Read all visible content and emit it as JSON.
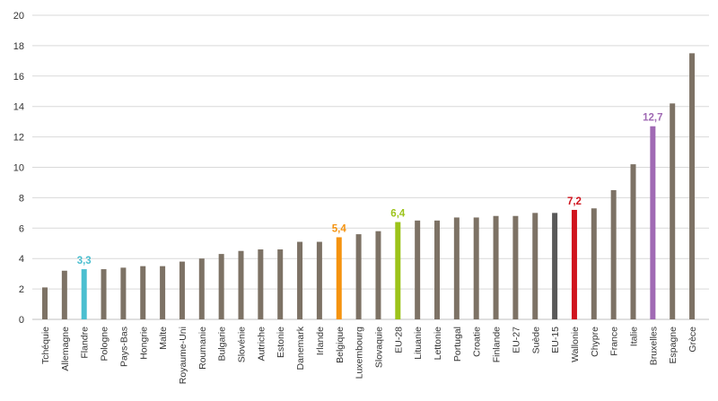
{
  "chart_data": {
    "type": "bar",
    "title": "",
    "xlabel": "",
    "ylabel": "",
    "ylim": [
      0,
      20
    ],
    "yticks": [
      0,
      2,
      4,
      6,
      8,
      10,
      12,
      14,
      16,
      18,
      20
    ],
    "grid": true,
    "legend": "none",
    "categories": [
      "Tchéquie",
      "Allemagne",
      "Flandre",
      "Pologne",
      "Pays-Bas",
      "Hongrie",
      "Malte",
      "Royaume-Uni",
      "Roumanie",
      "Bulgarie",
      "Slovénie",
      "Autriche",
      "Estonie",
      "Danemark",
      "Irlande",
      "Belgique",
      "Luxembourg",
      "Slovaquie",
      "EU-28",
      "Lituanie",
      "Lettonie",
      "Portugal",
      "Croatie",
      "Finlande",
      "EU-27",
      "Suède",
      "EU-15",
      "Wallonie",
      "Chypre",
      "France",
      "Italie",
      "Bruxelles",
      "Espagne",
      "Grèce"
    ],
    "values": [
      2.1,
      3.2,
      3.3,
      3.3,
      3.4,
      3.5,
      3.5,
      3.8,
      4.0,
      4.3,
      4.5,
      4.6,
      4.6,
      5.1,
      5.1,
      5.4,
      5.6,
      5.8,
      6.4,
      6.5,
      6.5,
      6.7,
      6.7,
      6.8,
      6.8,
      7.0,
      7.0,
      7.2,
      7.3,
      8.5,
      10.2,
      12.7,
      14.2,
      17.5
    ],
    "default_color": "#7d7265",
    "highlights": [
      {
        "category": "Flandre",
        "color": "#4bbfd0",
        "label": "3,3"
      },
      {
        "category": "Belgique",
        "color": "#f5930f",
        "label": "5,4"
      },
      {
        "category": "EU-28",
        "color": "#9cc31a",
        "label": "6,4"
      },
      {
        "category": "EU-15",
        "color": "#595959",
        "label": ""
      },
      {
        "category": "Wallonie",
        "color": "#d0141e",
        "label": "7,2"
      },
      {
        "category": "Bruxelles",
        "color": "#a06ab4",
        "label": "12,7"
      }
    ]
  }
}
